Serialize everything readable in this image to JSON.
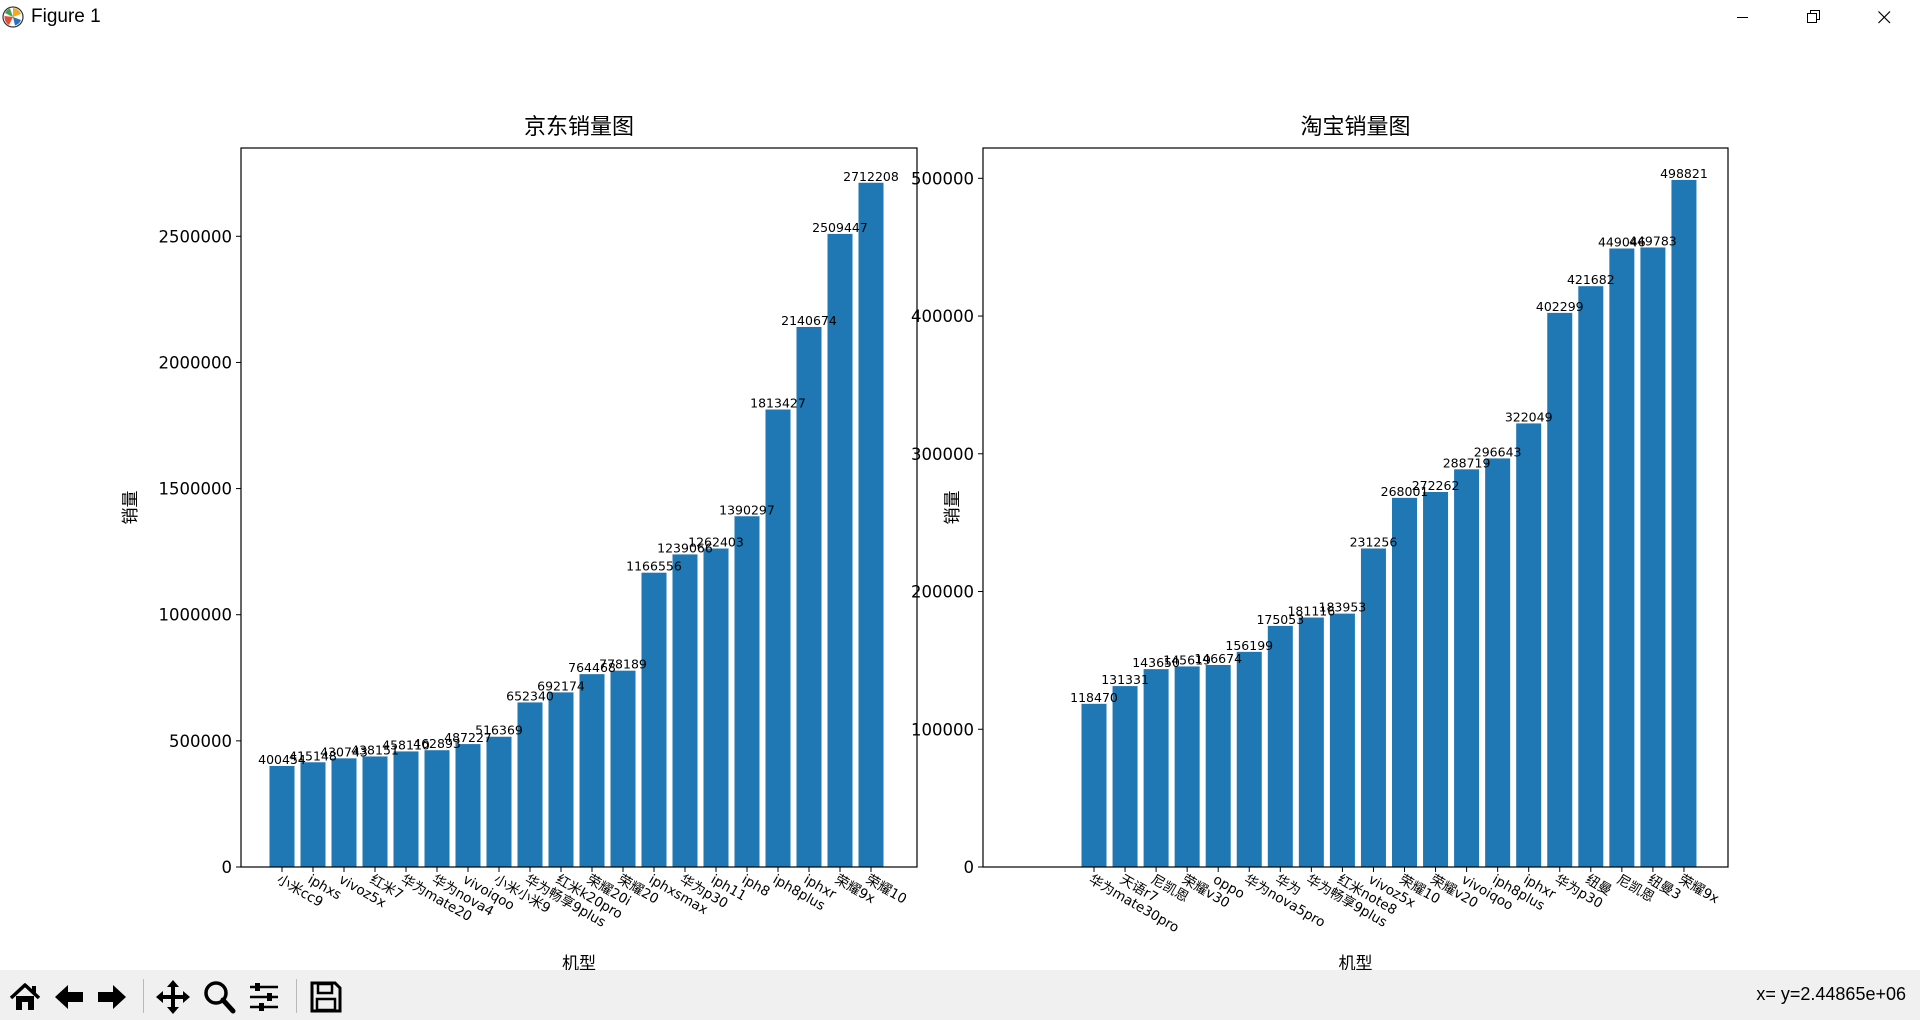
{
  "window": {
    "title": "Figure 1"
  },
  "status": {
    "text": "x= y=2.44865e+06"
  },
  "toolbar": {
    "buttons": [
      "home-icon",
      "back-arrow-icon",
      "forward-arrow-icon",
      "pan-icon",
      "zoom-icon",
      "configure-subplots-icon",
      "save-icon"
    ]
  },
  "chart_data": [
    {
      "type": "bar",
      "title": "京东销量图",
      "xlabel": "机型",
      "ylabel": "销量",
      "ylim": [
        0,
        2850000
      ],
      "yticks": [
        0,
        500000,
        1000000,
        1500000,
        2000000,
        2500000
      ],
      "color": "#1f77b4",
      "categories": [
        "小米cc9",
        "iphxs",
        "vivoz5x",
        "红米7",
        "华为mate20",
        "华为nova4",
        "vivoiqoo",
        "小米小米9",
        "华为畅享9plus",
        "红米k20pro",
        "荣耀20i",
        "荣耀20",
        "iphxsmax",
        "华为p30",
        "iph11",
        "iph8",
        "iph8plus",
        "iphxr",
        "荣耀9x",
        "荣耀10"
      ],
      "values": [
        400454,
        415148,
        430743,
        438151,
        458110,
        462893,
        487227,
        516369,
        652340,
        692174,
        764468,
        778189,
        1166556,
        1239066,
        1262403,
        1390297,
        1813427,
        2140674,
        2509447,
        2712208
      ],
      "labels": [
        "400454",
        "415148",
        "430743",
        "438151",
        "458110",
        "462893",
        "487227",
        "516369",
        "652340",
        "692174",
        "764468",
        "778189",
        "1166556",
        "1239066",
        "1262403",
        "1390297",
        "1813427",
        "2140674",
        "2509447",
        "2712208"
      ]
    },
    {
      "type": "bar",
      "title": "淘宝销量图",
      "xlabel": "机型",
      "ylabel": "销量",
      "ylim": [
        0,
        522000
      ],
      "yticks": [
        0,
        100000,
        200000,
        300000,
        400000,
        500000
      ],
      "color": "#1f77b4",
      "categories": [
        "华为mate30pro",
        "天语r7",
        "尼凯恩",
        "荣耀v30",
        "oppo",
        "华为nova5pro",
        "华为",
        "华为畅享9plus",
        "红米note8",
        "vivoz5x",
        "荣耀10",
        "荣耀v20",
        "vivoiqoo",
        "iph8plus",
        "iphxr",
        "华为p30",
        "纽曼",
        "尼凯恩",
        "纽曼3",
        "荣耀9x"
      ],
      "values": [
        118470,
        131331,
        143650,
        145619,
        146674,
        156199,
        175053,
        181116,
        183953,
        231256,
        268001,
        272262,
        288719,
        296643,
        322049,
        402299,
        421682,
        449046,
        449783,
        498821
      ],
      "labels": [
        "118470",
        "131331",
        "143650",
        "145619",
        "146674",
        "156199",
        "175053",
        "181116",
        "183953",
        "231256",
        "268001",
        "272262",
        "288719",
        "296643",
        "322049",
        "402299",
        "421682",
        "449046",
        "449783",
        "498821"
      ]
    }
  ]
}
